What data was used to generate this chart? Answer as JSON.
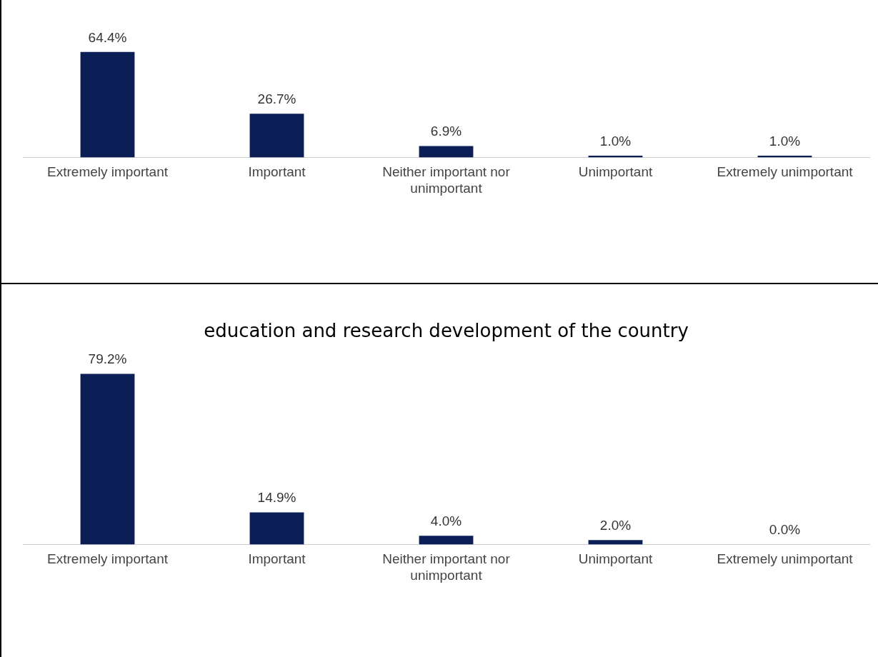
{
  "chart_data": [
    {
      "type": "bar",
      "categories": [
        "Extremely important",
        "Important",
        "Neither important nor unimportant",
        "Unimportant",
        "Extremely unimportant"
      ],
      "values": [
        64.4,
        26.7,
        6.9,
        1.0,
        1.0
      ],
      "value_labels": [
        "64.4%",
        "26.7%",
        "6.9%",
        "1.0%",
        "1.0%"
      ],
      "color": "#0b1f56",
      "grid": false,
      "legend": false
    },
    {
      "type": "bar",
      "title": "education and research development of the country",
      "categories": [
        "Extremely important",
        "Important",
        "Neither important nor unimportant",
        "Unimportant",
        "Extremely unimportant"
      ],
      "values": [
        79.2,
        14.9,
        4.0,
        2.0,
        0.0
      ],
      "value_labels": [
        "79.2%",
        "14.9%",
        "4.0%",
        "2.0%",
        "0.0%"
      ],
      "color": "#0b1f56",
      "grid": false,
      "legend": false
    }
  ]
}
